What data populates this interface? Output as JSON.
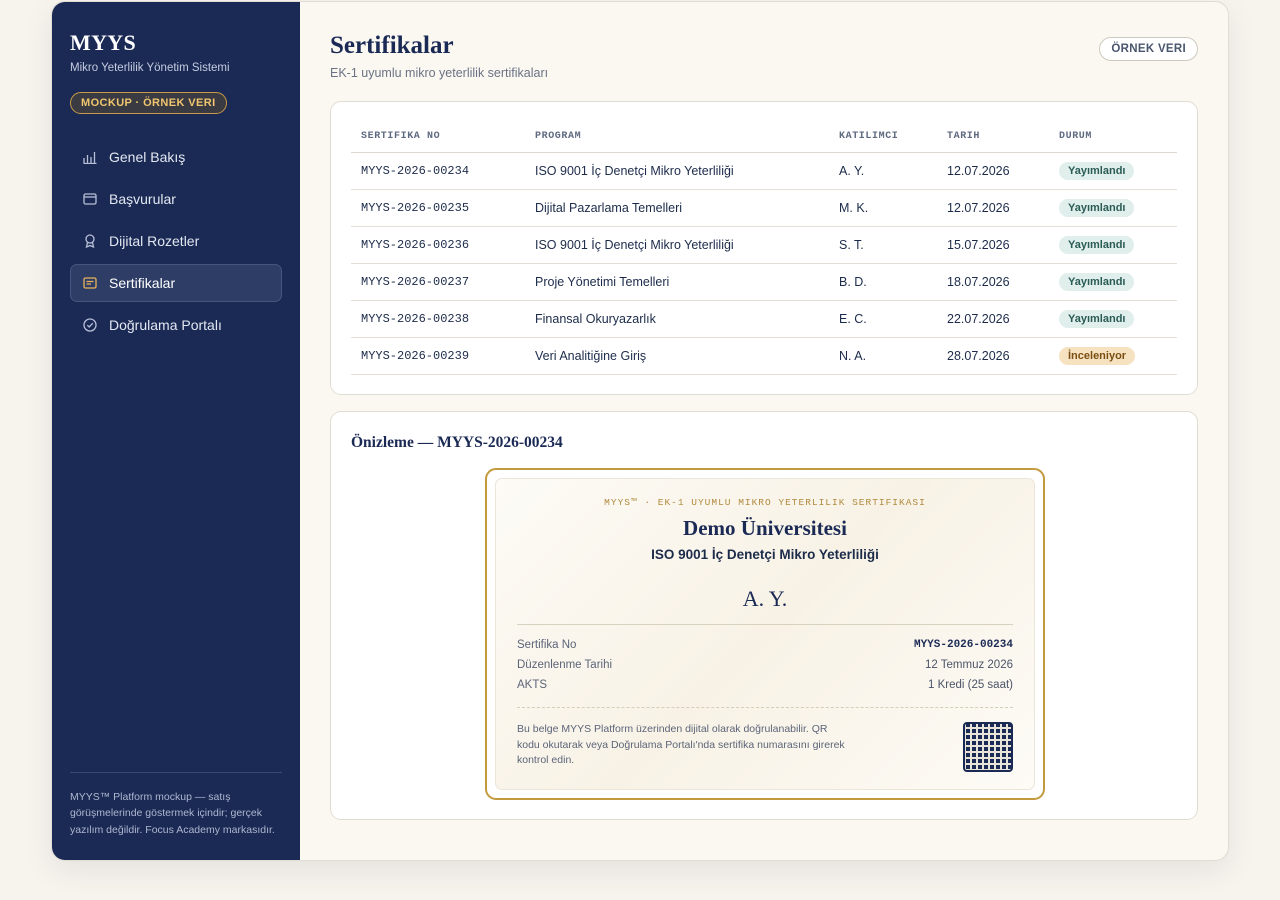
{
  "sidebar": {
    "brand": "MYYS",
    "subtitle": "Mikro Yeterlilik Yönetim Sistemi",
    "mock_badge": "MOCKUP · ÖRNEK VERI",
    "items": [
      {
        "label": "Genel Bakış",
        "icon": "bar-chart-icon"
      },
      {
        "label": "Başvurular",
        "icon": "window-icon"
      },
      {
        "label": "Dijital Rozetler",
        "icon": "badge-icon"
      },
      {
        "label": "Sertifikalar",
        "icon": "certificate-icon",
        "active": true
      },
      {
        "label": "Doğrulama Portalı",
        "icon": "check-circle-icon"
      }
    ],
    "footer": "MYYS™ Platform mockup — satış görüşmelerinde göstermek içindir; gerçek yazılım değildir. Focus Academy markasıdır."
  },
  "header": {
    "title": "Sertifikalar",
    "subtitle": "EK-1 uyumlu mikro yeterlilik sertifikaları",
    "example_pill": "ÖRNEK VERI"
  },
  "table": {
    "columns": [
      "SERTIFIKA NO",
      "PROGRAM",
      "KATILIMCI",
      "TARIH",
      "DURUM"
    ],
    "rows": [
      {
        "no": "MYYS-2026-00234",
        "program": "ISO 9001 İç Denetçi Mikro Yeterliliği",
        "participant": "A. Y.",
        "date": "12.07.2026",
        "status": "Yayımlandı",
        "kind": "pub"
      },
      {
        "no": "MYYS-2026-00235",
        "program": "Dijital Pazarlama Temelleri",
        "participant": "M. K.",
        "date": "12.07.2026",
        "status": "Yayımlandı",
        "kind": "pub"
      },
      {
        "no": "MYYS-2026-00236",
        "program": "ISO 9001 İç Denetçi Mikro Yeterliliği",
        "participant": "S. T.",
        "date": "15.07.2026",
        "status": "Yayımlandı",
        "kind": "pub"
      },
      {
        "no": "MYYS-2026-00237",
        "program": "Proje Yönetimi Temelleri",
        "participant": "B. D.",
        "date": "18.07.2026",
        "status": "Yayımlandı",
        "kind": "pub"
      },
      {
        "no": "MYYS-2026-00238",
        "program": "Finansal Okuryazarlık",
        "participant": "E. C.",
        "date": "22.07.2026",
        "status": "Yayımlandı",
        "kind": "pub"
      },
      {
        "no": "MYYS-2026-00239",
        "program": "Veri Analitiğine Giriş",
        "participant": "N. A.",
        "date": "28.07.2026",
        "status": "İnceleniyor",
        "kind": "rev"
      }
    ]
  },
  "preview": {
    "title": "Önizleme — MYYS-2026-00234",
    "header": "MYYS™ · EK-1 UYUMLU MIKRO YETERLILIK SERTIFIKASI",
    "university": "Demo Üniversitesi",
    "program": "ISO 9001 İç Denetçi Mikro Yeterliliği",
    "name": "A. Y.",
    "fields": [
      {
        "label": "Sertifika No",
        "value": "MYYS-2026-00234",
        "mono": true
      },
      {
        "label": "Düzenlenme Tarihi",
        "value": "12 Temmuz 2026"
      },
      {
        "label": "AKTS",
        "value": "1 Kredi (25 saat)"
      }
    ],
    "note": "Bu belge MYYS Platform üzerinden dijital olarak doğrulanabilir. QR kodu okutarak veya Doğrulama Portalı'nda sertifika numarasını girerek kontrol edin.",
    "qr_icon": "qr-code-icon"
  },
  "colors": {
    "sidebar": "#1b2a55",
    "accent_gold": "#c49a3e",
    "published_bg": "#e0eeec",
    "review_bg": "#f6e2c0"
  }
}
